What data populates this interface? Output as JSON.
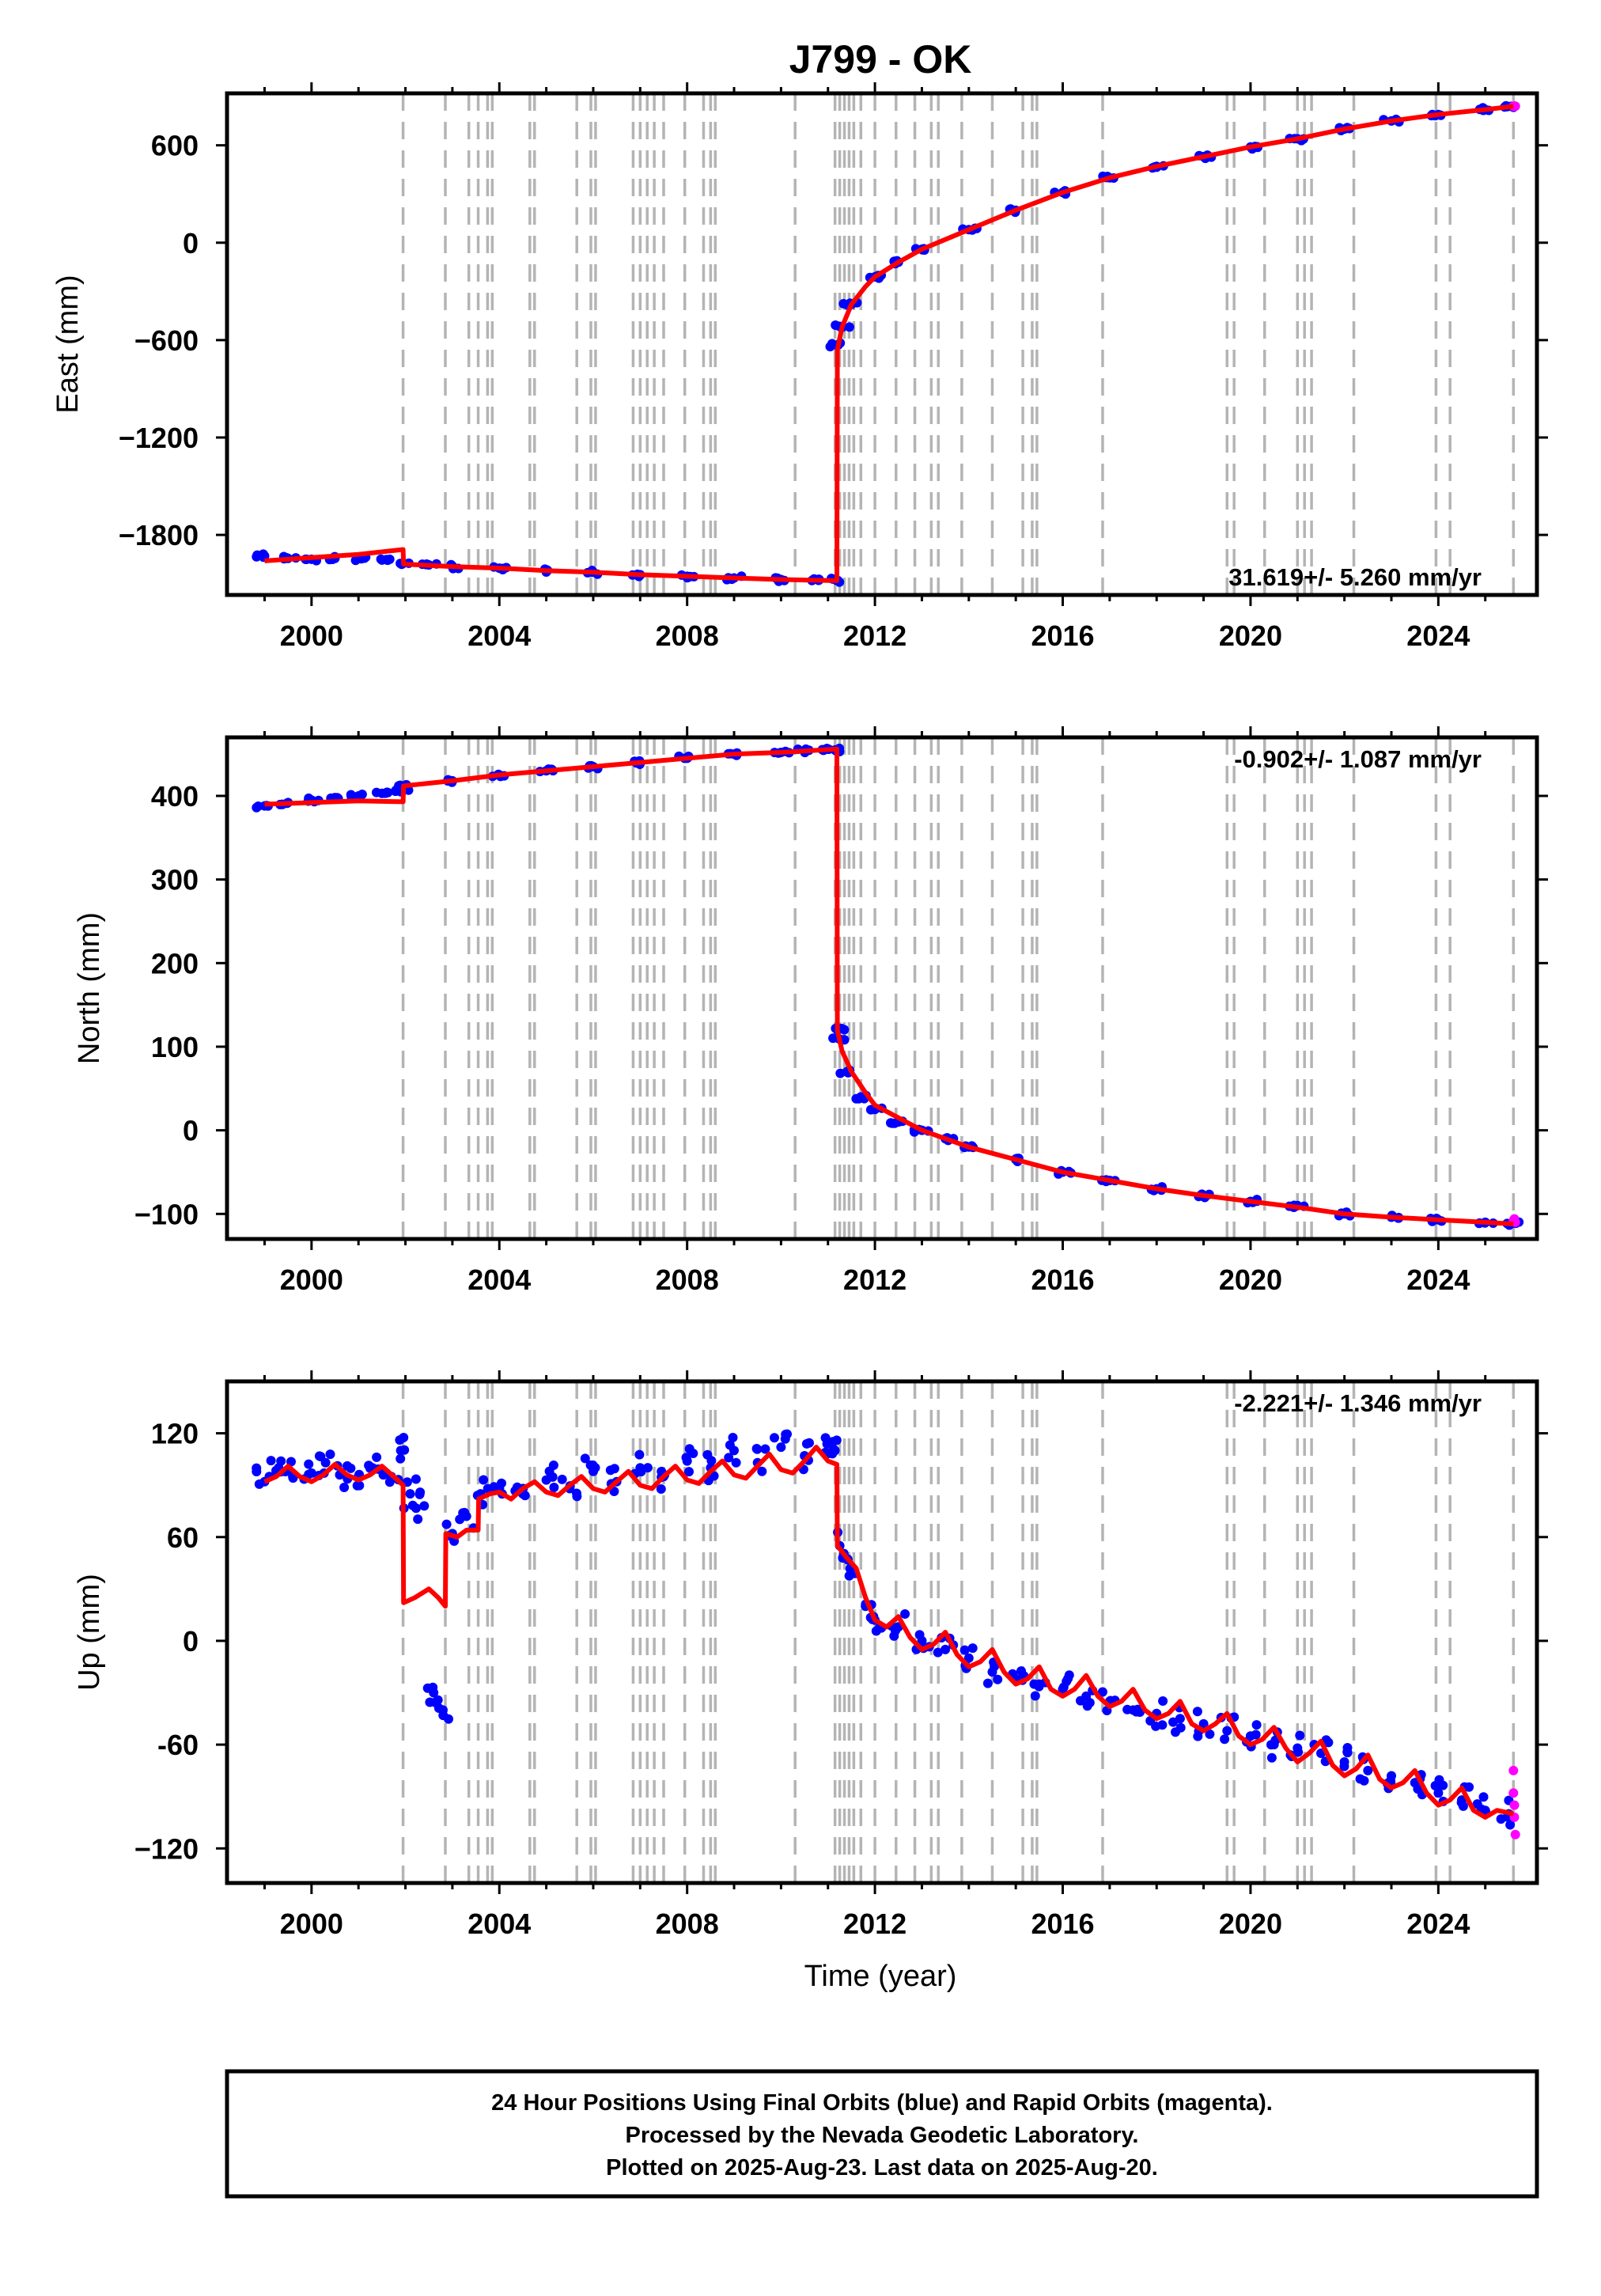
{
  "chart_data": {
    "type": "scatter",
    "title": "J799 - OK",
    "xlabel": "Time (year)",
    "xlim": [
      1998.2,
      2026.1
    ],
    "x_ticks": [
      2000,
      2004,
      2008,
      2012,
      2016,
      2020,
      2024
    ],
    "x_tick_labels": [
      "2000",
      "2004",
      "2008",
      "2012",
      "2016",
      "2020",
      "2024"
    ],
    "grid": false,
    "colors": {
      "final_orbits": "#0000ff",
      "rapid_orbits": "#ff00ff",
      "model": "#ff0000",
      "offset_lines": "#b4b4b4"
    },
    "offset_epochs": [
      2001.95,
      2002.85,
      2003.35,
      2003.55,
      2003.75,
      2003.85,
      2004.65,
      2004.75,
      2005.65,
      2005.95,
      2006.05,
      2006.85,
      2007.0,
      2007.15,
      2007.3,
      2007.5,
      2007.95,
      2008.35,
      2008.5,
      2008.6,
      2010.3,
      2011.15,
      2011.25,
      2011.35,
      2011.45,
      2011.55,
      2011.7,
      2012.0,
      2012.45,
      2012.85,
      2013.2,
      2013.35,
      2013.85,
      2014.5,
      2015.15,
      2015.35,
      2015.45,
      2016.85,
      2019.5,
      2019.65,
      2020.3,
      2021.0,
      2021.15,
      2021.3,
      2022.2,
      2023.95,
      2024.25,
      2025.6
    ],
    "panels": [
      {
        "ylabel": "East (mm)",
        "ylim": [
          -2170,
          920
        ],
        "y_ticks": [
          600,
          0,
          -600,
          -1200,
          -1800
        ],
        "y_tick_labels": [
          "600",
          "0",
          "−600",
          "−1200",
          "−1800"
        ],
        "rate_text": "31.619+/- 5.260 mm/yr",
        "rate_position": "bottom-right",
        "series": [
          {
            "kind": "final_orbits",
            "x": [
              1999.0,
              1999.5,
              2000.0,
              2000.5,
              2001.0,
              2001.5,
              2001.95,
              2002.5,
              2003.0,
              2004.0,
              2005.0,
              2006.0,
              2007.0,
              2008.0,
              2009.0,
              2010.0,
              2010.8,
              2011.18,
              2011.22,
              2011.3,
              2011.5,
              2012.0,
              2012.5,
              2013.0,
              2014.0,
              2015.0,
              2016.0,
              2017.0,
              2018.0,
              2019.0,
              2020.0,
              2021.0,
              2022.0,
              2023.0,
              2024.0,
              2025.0,
              2025.55
            ],
            "y": [
              -1930,
              -1945,
              -1950,
              -1945,
              -1945,
              -1955,
              -1975,
              -1985,
              -1995,
              -2005,
              -2020,
              -2030,
              -2045,
              -2055,
              -2065,
              -2075,
              -2080,
              -2080,
              -630,
              -520,
              -380,
              -210,
              -120,
              -40,
              80,
              200,
              310,
              400,
              470,
              530,
              590,
              640,
              700,
              750,
              790,
              820,
              840
            ]
          },
          {
            "kind": "rapid_orbits",
            "x": [
              2025.6,
              2025.62,
              2025.64
            ],
            "y": [
              840,
              842,
              841
            ]
          },
          {
            "kind": "model",
            "x": [
              1999.0,
              2000.0,
              2001.0,
              2001.95,
              2001.96,
              2003.0,
              2004.0,
              2005.0,
              2006.0,
              2007.0,
              2008.0,
              2009.0,
              2010.0,
              2011.19,
              2011.2,
              2011.3,
              2011.5,
              2011.8,
              2012.0,
              2012.5,
              2013.0,
              2014.0,
              2015.0,
              2016.0,
              2017.0,
              2018.0,
              2019.0,
              2020.0,
              2021.0,
              2022.0,
              2023.0,
              2024.0,
              2025.0,
              2025.6
            ],
            "y": [
              -1960,
              -1940,
              -1920,
              -1890,
              -1980,
              -1995,
              -2005,
              -2020,
              -2030,
              -2045,
              -2055,
              -2065,
              -2075,
              -2082,
              -660,
              -520,
              -380,
              -270,
              -210,
              -120,
              -40,
              80,
              200,
              310,
              400,
              470,
              530,
              590,
              640,
              700,
              750,
              790,
              820,
              840
            ]
          }
        ]
      },
      {
        "ylabel": "North (mm)",
        "ylim": [
          -130,
          470
        ],
        "y_ticks": [
          400,
          300,
          200,
          100,
          0,
          -100
        ],
        "y_tick_labels": [
          "400",
          "300",
          "200",
          "100",
          "0",
          "−100"
        ],
        "rate_text": "-0.902+/- 1.087 mm/yr",
        "rate_position": "top-right",
        "series": [
          {
            "kind": "final_orbits",
            "x": [
              1999.0,
              1999.5,
              2000.0,
              2000.5,
              2001.0,
              2001.5,
              2001.9,
              2002.0,
              2003.0,
              2004.0,
              2005.0,
              2006.0,
              2007.0,
              2008.0,
              2009.0,
              2010.0,
              2010.5,
              2011.0,
              2011.15,
              2011.2,
              2011.22,
              2011.4,
              2011.7,
              2012.0,
              2012.5,
              2013.0,
              2013.5,
              2014.0,
              2015.0,
              2016.0,
              2017.0,
              2018.0,
              2019.0,
              2020.0,
              2021.0,
              2022.0,
              2023.0,
              2024.0,
              2025.0,
              2025.55
            ],
            "y": [
              388,
              392,
              395,
              398,
              400,
              403,
              405,
              412,
              418,
              425,
              430,
              435,
              440,
              445,
              450,
              452,
              454,
              456,
              455,
              120,
              110,
              70,
              40,
              25,
              10,
              0,
              -10,
              -20,
              -35,
              -50,
              -60,
              -70,
              -78,
              -85,
              -90,
              -100,
              -104,
              -107,
              -110,
              -112
            ]
          },
          {
            "kind": "rapid_orbits",
            "x": [
              2025.6,
              2025.62,
              2025.64
            ],
            "y": [
              -108,
              -106,
              -110
            ]
          },
          {
            "kind": "model",
            "x": [
              1999.0,
              2000.0,
              2001.0,
              2001.95,
              2001.96,
              2003.0,
              2004.0,
              2005.0,
              2006.0,
              2007.0,
              2008.0,
              2009.0,
              2010.0,
              2011.19,
              2011.2,
              2011.3,
              2011.5,
              2011.8,
              2012.0,
              2012.5,
              2013.0,
              2014.0,
              2015.0,
              2016.0,
              2017.0,
              2018.0,
              2019.0,
              2020.0,
              2021.0,
              2022.0,
              2023.0,
              2024.0,
              2025.0,
              2025.6
            ],
            "y": [
              390,
              392,
              394,
              393,
              412,
              418,
              425,
              430,
              435,
              440,
              445,
              450,
              452,
              456,
              120,
              95,
              70,
              45,
              30,
              15,
              0,
              -20,
              -35,
              -50,
              -60,
              -70,
              -78,
              -85,
              -92,
              -100,
              -104,
              -107,
              -110,
              -112
            ]
          }
        ]
      },
      {
        "ylabel": "Up (mm)",
        "ylim": [
          -140,
          150
        ],
        "y_ticks": [
          120,
          60,
          0,
          -60,
          -120
        ],
        "y_tick_labels": [
          "120",
          "60",
          "0",
          "-60",
          "−120"
        ],
        "rate_text": "-2.221+/- 1.346 mm/yr",
        "rate_position": "top-right",
        "series": [
          {
            "kind": "final_orbits",
            "x": [
              1999.0,
              1999.3,
              1999.6,
              2000.0,
              2000.3,
              2000.6,
              2001.0,
              2001.3,
              2001.7,
              2001.9,
              2002.1,
              2002.4,
              2002.6,
              2002.8,
              2003.0,
              2003.3,
              2003.6,
              2004.0,
              2004.5,
              2005.0,
              2005.5,
              2006.0,
              2006.5,
              2007.0,
              2007.5,
              2008.0,
              2008.5,
              2009.0,
              2009.5,
              2010.0,
              2010.5,
              2011.0,
              2011.15,
              2011.25,
              2011.5,
              2011.8,
              2012.0,
              2012.5,
              2013.0,
              2013.5,
              2014.0,
              2014.5,
              2015.0,
              2015.5,
              2016.0,
              2016.5,
              2017.0,
              2017.5,
              2018.0,
              2018.5,
              2019.0,
              2019.5,
              2020.0,
              2020.5,
              2021.0,
              2021.5,
              2022.0,
              2022.5,
              2023.0,
              2023.5,
              2024.0,
              2024.5,
              2025.0,
              2025.5
            ],
            "y": [
              92,
              100,
              95,
              97,
              103,
              96,
              95,
              100,
              95,
              110,
              85,
              78,
              -30,
              -40,
              62,
              72,
              85,
              88,
              85,
              93,
              88,
              98,
              92,
              100,
              95,
              104,
              100,
              110,
              103,
              112,
              107,
              115,
              110,
              55,
              40,
              20,
              12,
              8,
              0,
              -5,
              -10,
              -18,
              -22,
              -25,
              -28,
              -32,
              -35,
              -40,
              -42,
              -45,
              -48,
              -52,
              -55,
              -60,
              -62,
              -65,
              -70,
              -75,
              -78,
              -82,
              -88,
              -92,
              -98,
              -100
            ]
          },
          {
            "kind": "rapid_orbits",
            "x": [
              2025.6,
              2025.6,
              2025.62,
              2025.62,
              2025.64
            ],
            "y": [
              -75,
              -88,
              -95,
              -102,
              -112
            ]
          },
          {
            "kind": "model",
            "x": [
              1999.0,
              1999.25,
              1999.5,
              1999.75,
              2000.0,
              2000.25,
              2000.5,
              2000.75,
              2001.0,
              2001.25,
              2001.5,
              2001.75,
              2001.95,
              2001.96,
              2002.2,
              2002.5,
              2002.7,
              2002.85,
              2002.86,
              2003.1,
              2003.3,
              2003.55,
              2003.56,
              2003.8,
              2004.0,
              2004.25,
              2004.5,
              2004.75,
              2005.0,
              2005.25,
              2005.5,
              2005.75,
              2006.0,
              2006.25,
              2006.5,
              2006.75,
              2007.0,
              2007.25,
              2007.5,
              2007.75,
              2008.0,
              2008.25,
              2008.5,
              2008.75,
              2009.0,
              2009.25,
              2009.5,
              2009.75,
              2010.0,
              2010.25,
              2010.5,
              2010.75,
              2011.0,
              2011.19,
              2011.2,
              2011.4,
              2011.6,
              2011.8,
              2012.0,
              2012.25,
              2012.5,
              2012.75,
              2013.0,
              2013.25,
              2013.5,
              2013.75,
              2014.0,
              2014.25,
              2014.5,
              2014.75,
              2015.0,
              2015.25,
              2015.5,
              2015.75,
              2016.0,
              2016.25,
              2016.5,
              2016.75,
              2017.0,
              2017.25,
              2017.5,
              2017.75,
              2018.0,
              2018.25,
              2018.5,
              2018.75,
              2019.0,
              2019.25,
              2019.5,
              2019.75,
              2020.0,
              2020.25,
              2020.5,
              2020.75,
              2021.0,
              2021.25,
              2021.5,
              2021.75,
              2022.0,
              2022.25,
              2022.5,
              2022.75,
              2023.0,
              2023.25,
              2023.5,
              2023.75,
              2024.0,
              2024.25,
              2024.5,
              2024.75,
              2025.0,
              2025.25,
              2025.6
            ],
            "y": [
              92,
              95,
              101,
              95,
              92,
              96,
              102,
              96,
              93,
              96,
              101,
              95,
              90,
              22,
              25,
              30,
              25,
              20,
              62,
              60,
              64,
              64,
              82,
              85,
              86,
              82,
              88,
              92,
              86,
              84,
              90,
              95,
              88,
              86,
              92,
              98,
              90,
              88,
              95,
              101,
              93,
              91,
              98,
              104,
              96,
              94,
              101,
              108,
              99,
              97,
              104,
              112,
              104,
              102,
              55,
              48,
              42,
              25,
              12,
              8,
              14,
              2,
              -5,
              -2,
              5,
              -8,
              -15,
              -12,
              -5,
              -18,
              -25,
              -22,
              -15,
              -28,
              -32,
              -28,
              -20,
              -32,
              -38,
              -35,
              -28,
              -40,
              -45,
              -42,
              -35,
              -48,
              -52,
              -48,
              -42,
              -55,
              -60,
              -57,
              -50,
              -62,
              -70,
              -65,
              -58,
              -72,
              -78,
              -74,
              -66,
              -80,
              -85,
              -82,
              -75,
              -88,
              -95,
              -92,
              -85,
              -98,
              -102,
              -98,
              -100
            ]
          }
        ]
      }
    ]
  },
  "caption": {
    "lines": [
      "24 Hour Positions Using Final Orbits (blue) and Rapid Orbits (magenta).",
      "Processed by the Nevada Geodetic Laboratory.",
      "Plotted on 2025-Aug-23. Last data on 2025-Aug-20."
    ]
  }
}
